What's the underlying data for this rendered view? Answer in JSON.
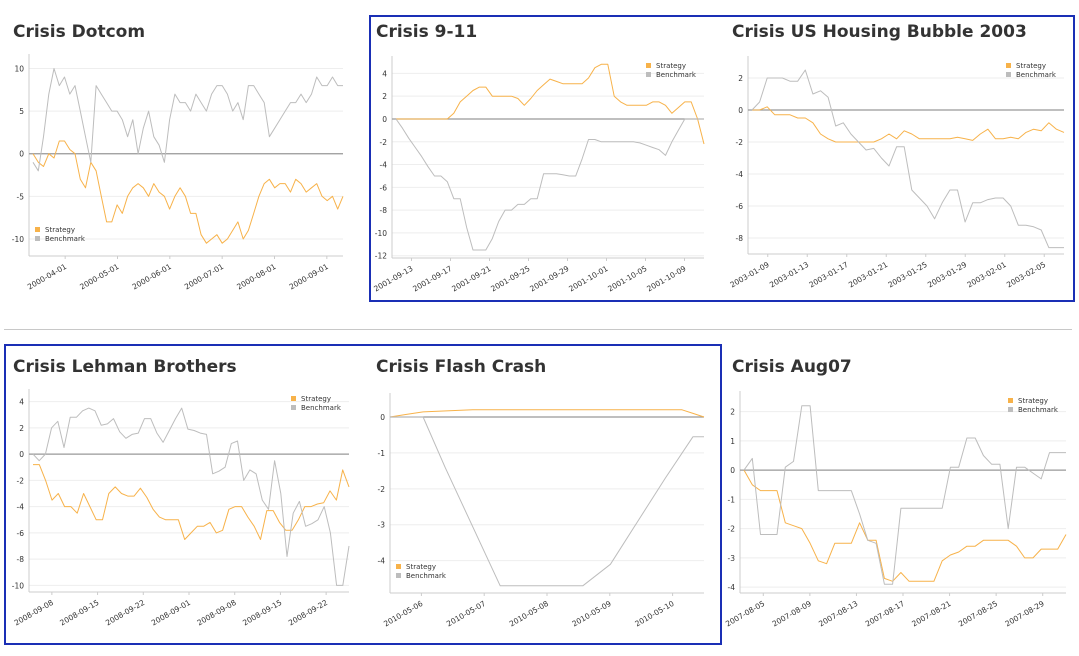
{
  "colors": {
    "strategy": "#f7b24a",
    "benchmark": "#bdbdbd",
    "zero_line": "#999999",
    "grid": "#eeeeee",
    "selection": "#1a2fb5"
  },
  "chart_data": [
    {
      "type": "line",
      "title": "Crisis Dotcom",
      "ylim": [
        -12,
        11
      ],
      "yticks": [
        10,
        5,
        0,
        -5,
        -10
      ],
      "xticks": [
        "2000-04-01",
        "2000-05-01",
        "2000-06-01",
        "2000-07-01",
        "2000-08-01",
        "2000-09-01"
      ],
      "legend": "bottom-left",
      "series": [
        {
          "name": "Strategy",
          "values": [
            0,
            -1,
            -1.5,
            0,
            -0.5,
            1.5,
            1.5,
            0.5,
            0,
            -3,
            -4,
            -1,
            -2,
            -5,
            -8,
            -8,
            -6,
            -7,
            -5,
            -4,
            -3.5,
            -4,
            -5,
            -3.5,
            -4.5,
            -5,
            -6.5,
            -5,
            -4,
            -5,
            -7,
            -7,
            -9.5,
            -10.5,
            -10,
            -9.5,
            -10.5,
            -10,
            -9,
            -8,
            -10,
            -9,
            -7,
            -5,
            -3.5,
            -3,
            -4,
            -3.5,
            -3.5,
            -4.5,
            -3,
            -3.5,
            -4.5,
            -4,
            -3.5,
            -5,
            -5.5,
            -5,
            -6.5,
            -5
          ]
        },
        {
          "name": "Benchmark",
          "values": [
            -1,
            -2,
            2,
            7,
            10,
            8,
            9,
            7,
            8,
            5,
            2,
            -1,
            8,
            7,
            6,
            5,
            5,
            4,
            2,
            4,
            0,
            3,
            5,
            2,
            1,
            -1,
            4,
            7,
            6,
            6,
            5,
            7,
            6,
            5,
            7,
            8,
            8,
            7,
            5,
            6,
            4,
            8,
            8,
            7,
            6,
            2,
            3,
            4,
            5,
            6,
            6,
            7,
            6,
            7,
            9,
            8,
            8,
            9,
            8,
            8
          ]
        }
      ]
    },
    {
      "type": "line",
      "title": "Crisis 9-11",
      "ylim": [
        -12.2,
        5
      ],
      "yticks": [
        4,
        2,
        0,
        -2,
        -4,
        -6,
        -8,
        -10,
        -12
      ],
      "xticks": [
        "2001-09-13",
        "2001-09-17",
        "2001-09-21",
        "2001-09-25",
        "2001-09-29",
        "2001-10-01",
        "2001-10-05",
        "2001-10-09"
      ],
      "legend": "top-right",
      "series": [
        {
          "name": "Strategy",
          "values": [
            0,
            0,
            0,
            0,
            0,
            0,
            0,
            0,
            0,
            0.5,
            1.5,
            2,
            2.5,
            2.8,
            2.8,
            2,
            2,
            2,
            2,
            1.8,
            1.2,
            1.8,
            2.5,
            3,
            3.5,
            3.3,
            3.1,
            3.1,
            3.1,
            3.1,
            3.6,
            4.5,
            4.8,
            4.8,
            2,
            1.5,
            1.2,
            1.2,
            1.2,
            1.2,
            1.5,
            1.5,
            1.2,
            0.5,
            1,
            1.5,
            1.5,
            0,
            -2.2
          ]
        },
        {
          "name": "Benchmark",
          "values": [
            0,
            -0.8,
            -1.7,
            -2.5,
            -3.3,
            -4.2,
            -5,
            -5,
            -5.5,
            -7,
            -7,
            -9.5,
            -11.5,
            -11.5,
            -11.5,
            -10.5,
            -9,
            -8,
            -8,
            -7.5,
            -7.5,
            -7,
            -7,
            -4.8,
            -4.8,
            -4.8,
            -4.9,
            -5,
            -5,
            -3.5,
            -1.8,
            -1.8,
            -2,
            -2,
            -2,
            -2,
            -2,
            -2,
            -2.1,
            -2.3,
            -2.5,
            -2.7,
            -3.2,
            -2,
            -1,
            0,
            0,
            0,
            0
          ]
        }
      ]
    },
    {
      "type": "line",
      "title": "Crisis US Housing Bubble 2003",
      "ylim": [
        -9,
        3
      ],
      "yticks": [
        2,
        0,
        -2,
        -4,
        -6,
        -8
      ],
      "xticks": [
        "2003-01-09",
        "2003-01-13",
        "2003-01-17",
        "2003-01-21",
        "2003-01-25",
        "2003-01-29",
        "2003-02-01",
        "2003-02-05"
      ],
      "legend": "top-right",
      "series": [
        {
          "name": "Strategy",
          "values": [
            0,
            0,
            0.2,
            -0.3,
            -0.3,
            -0.3,
            -0.5,
            -0.5,
            -0.8,
            -1.5,
            -1.8,
            -2,
            -2,
            -2,
            -2,
            -2,
            -2,
            -1.8,
            -1.5,
            -1.8,
            -1.3,
            -1.5,
            -1.8,
            -1.8,
            -1.8,
            -1.8,
            -1.8,
            -1.7,
            -1.8,
            -1.9,
            -1.5,
            -1.2,
            -1.8,
            -1.8,
            -1.7,
            -1.8,
            -1.4,
            -1.2,
            -1.3,
            -0.8,
            -1.2,
            -1.4
          ]
        },
        {
          "name": "Benchmark",
          "values": [
            0,
            0.5,
            2,
            2,
            2,
            1.8,
            1.8,
            2.5,
            1,
            1.2,
            0.8,
            -1,
            -0.8,
            -1.5,
            -2,
            -2.5,
            -2.4,
            -3,
            -3.5,
            -2.3,
            -2.3,
            -5,
            -5.5,
            -6,
            -6.8,
            -5.8,
            -5,
            -5,
            -7,
            -5.8,
            -5.8,
            -5.6,
            -5.5,
            -5.5,
            -6,
            -7.2,
            -7.2,
            -7.3,
            -7.5,
            -8.6,
            -8.6,
            -8.6
          ]
        }
      ]
    },
    {
      "type": "line",
      "title": "Crisis Lehman Brothers",
      "ylim": [
        -10.5,
        4.5
      ],
      "yticks": [
        4,
        2,
        0,
        -2,
        -4,
        -6,
        -8,
        -10
      ],
      "xticks": [
        "2008-09-08",
        "2008-09-15",
        "2008-09-22",
        "2008-09-01",
        "2008-09-08",
        "2008-09-15",
        "2008-09-22"
      ],
      "legend": "top-right",
      "series": [
        {
          "name": "Strategy",
          "values": [
            -0.8,
            -0.8,
            -2,
            -3.5,
            -3,
            -4,
            -4,
            -4.5,
            -3,
            -4,
            -5,
            -5,
            -3,
            -2.5,
            -3,
            -3.2,
            -3.2,
            -2.6,
            -3.3,
            -4.2,
            -4.8,
            -5,
            -5,
            -5,
            -6.5,
            -6,
            -5.5,
            -5.5,
            -5.2,
            -6,
            -5.8,
            -4.2,
            -4,
            -4,
            -4.8,
            -5.5,
            -6.5,
            -4.3,
            -4.3,
            -5.2,
            -5.8,
            -5.8,
            -5,
            -4,
            -4,
            -3.8,
            -3.7,
            -2.8,
            -3.5,
            -1.2,
            -2.5
          ]
        },
        {
          "name": "Benchmark",
          "values": [
            0,
            -0.5,
            0,
            2,
            2.5,
            0.5,
            2.8,
            2.8,
            3.3,
            3.5,
            3.3,
            2.2,
            2.3,
            2.7,
            1.7,
            1.2,
            1.5,
            1.6,
            2.7,
            2.7,
            1.6,
            0.9,
            1.8,
            2.7,
            3.5,
            1.9,
            1.8,
            1.6,
            1.5,
            -1.5,
            -1.3,
            -1,
            0.8,
            1,
            -2,
            -1.2,
            -1.5,
            -3.5,
            -4.2,
            -0.5,
            -3,
            -7.8,
            -4.5,
            -3.6,
            -5.5,
            -5.3,
            -5,
            -4,
            -6,
            -10,
            -10,
            -7
          ]
        }
      ]
    },
    {
      "type": "line",
      "title": "Crisis Flash Crash",
      "ylim": [
        -4.9,
        0.5
      ],
      "yticks": [
        0,
        -1,
        -2,
        -3,
        -4
      ],
      "xticks": [
        "2010-05-06",
        "2010-05-07",
        "2010-05-08",
        "2010-05-09",
        "2010-05-10"
      ],
      "legend": "bottom-left",
      "series": [
        {
          "name": "Strategy",
          "x": [
            0,
            0.3,
            0.6,
            1.5,
            2.5,
            4,
            5,
            5.3,
            5.5,
            5.7
          ],
          "values": [
            0,
            0.07,
            0.14,
            0.2,
            0.2,
            0.2,
            0.2,
            0.2,
            0.1,
            0
          ]
        },
        {
          "name": "Benchmark",
          "x": [
            0,
            0.6,
            1.0,
            2.0,
            2.5,
            3.0,
            3.5,
            4.0,
            4.5,
            5.0,
            5.5,
            5.7
          ],
          "values": [
            0,
            0,
            -1.4,
            -4.7,
            -4.7,
            -4.7,
            -4.7,
            -4.1,
            -2.9,
            -1.7,
            -0.55,
            -0.55
          ]
        }
      ]
    },
    {
      "type": "line",
      "title": "Crisis Aug07",
      "ylim": [
        -4.2,
        2.5
      ],
      "yticks": [
        2,
        1,
        0,
        -1,
        -2,
        -3,
        -4
      ],
      "xticks": [
        "2007-08-05",
        "2007-08-09",
        "2007-08-13",
        "2007-08-17",
        "2007-08-21",
        "2007-08-25",
        "2007-08-29"
      ],
      "legend": "top-right",
      "series": [
        {
          "name": "Strategy",
          "values": [
            0,
            -0.5,
            -0.7,
            -0.7,
            -0.7,
            -1.8,
            -1.9,
            -2,
            -2.5,
            -3.1,
            -3.2,
            -2.5,
            -2.5,
            -2.5,
            -1.8,
            -2.4,
            -2.4,
            -3.7,
            -3.8,
            -3.5,
            -3.8,
            -3.8,
            -3.8,
            -3.8,
            -3.1,
            -2.9,
            -2.8,
            -2.6,
            -2.6,
            -2.4,
            -2.4,
            -2.4,
            -2.4,
            -2.6,
            -3,
            -3,
            -2.7,
            -2.7,
            -2.7,
            -2.2
          ]
        },
        {
          "name": "Benchmark",
          "values": [
            0,
            0.4,
            -2.2,
            -2.2,
            -2.2,
            0.1,
            0.3,
            2.2,
            2.2,
            -0.7,
            -0.7,
            -0.7,
            -0.7,
            -0.7,
            -1.5,
            -2.4,
            -2.5,
            -3.9,
            -3.9,
            -1.3,
            -1.3,
            -1.3,
            -1.3,
            -1.3,
            -1.3,
            0.1,
            0.1,
            1.1,
            1.1,
            0.5,
            0.2,
            0.2,
            -2,
            0.1,
            0.1,
            -0.1,
            -0.3,
            0.6,
            0.6,
            0.6
          ]
        }
      ]
    }
  ]
}
